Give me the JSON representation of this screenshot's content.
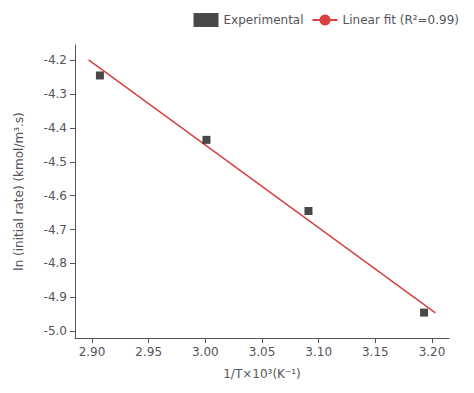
{
  "chart_data": {
    "type": "scatter",
    "xlabel": "1/T×10³(K⁻¹)",
    "ylabel": "ln (initial rate) (kmol/m³.s)",
    "series": [
      {
        "name": "Experimental",
        "type": "scatter",
        "marker": "square",
        "color": "#1a1a1a",
        "x": [
          2.907,
          3.001,
          3.091,
          3.193
        ],
        "values": [
          -4.245,
          -4.435,
          -4.645,
          -4.945
        ]
      },
      {
        "name": "Linear fit (R²=0.99)",
        "type": "line",
        "line_style": "solid",
        "color": "#d94040",
        "x": [
          2.897,
          3.203
        ],
        "values": [
          -4.1989,
          -4.9459
        ]
      }
    ],
    "xlim": [
      2.885,
      3.215
    ],
    "ylim": [
      -5.02,
      -4.155
    ],
    "xticks": [
      {
        "value": 2.9,
        "label": "2.90"
      },
      2.95,
      {
        "value": 3.0,
        "label": "3.00"
      },
      3.05,
      {
        "value": 3.1,
        "label": "3.10"
      },
      3.15,
      {
        "value": 3.2,
        "label": "3.20"
      }
    ],
    "yticks": [
      {
        "value": -5.0,
        "label": "-5.0"
      },
      -4.9,
      -4.8,
      -4.7,
      -4.6,
      -4.5,
      -4.4,
      -4.3,
      -4.2
    ],
    "grid": false,
    "legend": "upper right"
  }
}
